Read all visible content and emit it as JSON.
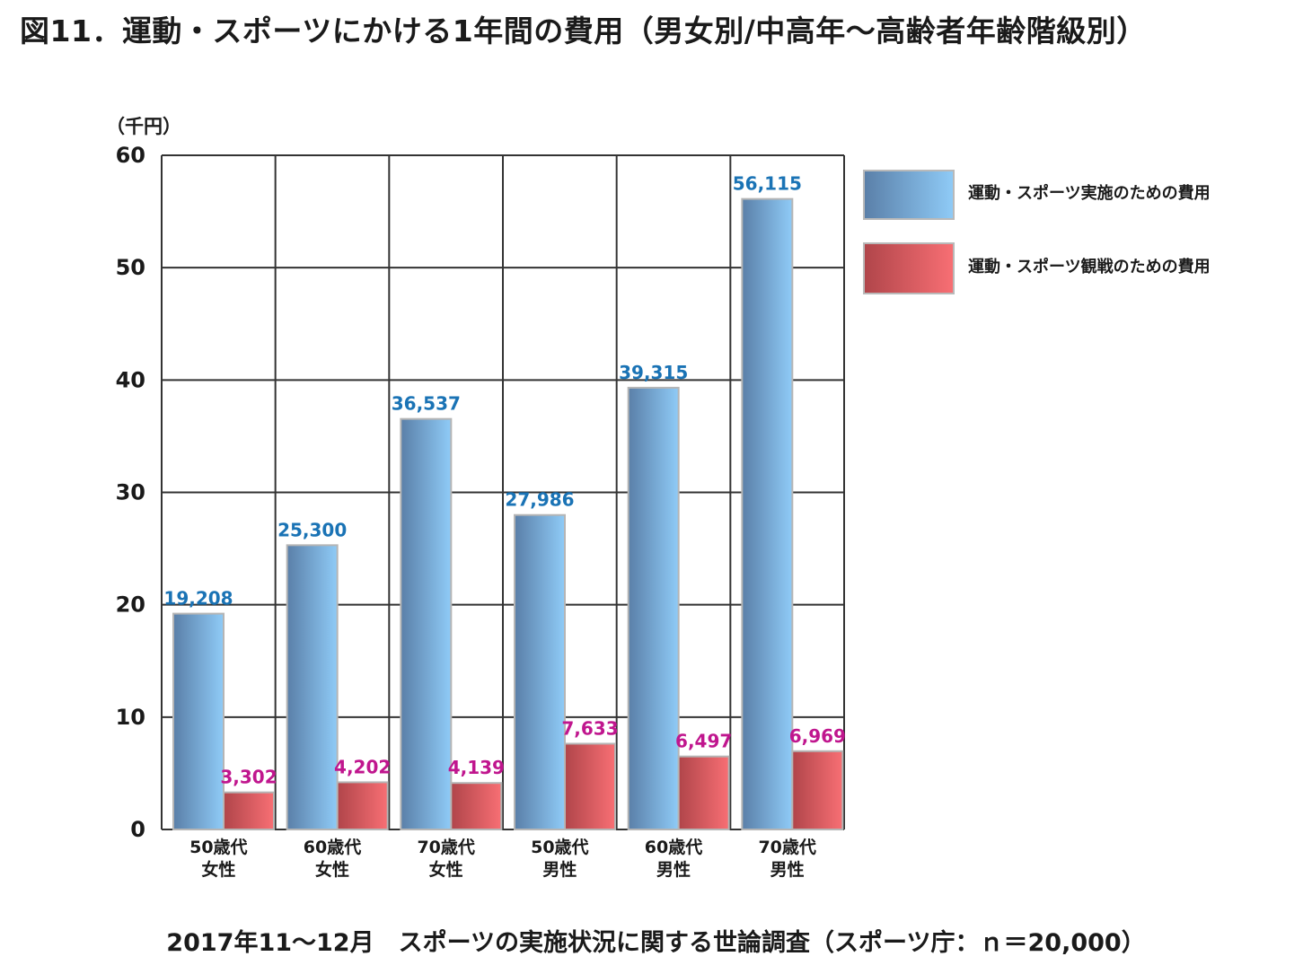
{
  "title": "図11．運動・スポーツにかける1年間の費用（男女別/中高年～高齢者年齢階級別）",
  "source": "2017年11～12月　スポーツの実施状況に関する世論調査（スポーツ庁：ｎ＝20,000）",
  "chart_data": {
    "type": "bar",
    "unit_label": "（千円）",
    "ylim": [
      0,
      60
    ],
    "yticks": [
      0,
      10,
      20,
      30,
      40,
      50,
      60
    ],
    "grid": true,
    "legend_position": "right",
    "categories": [
      [
        "50歳代",
        "女性"
      ],
      [
        "60歳代",
        "女性"
      ],
      [
        "70歳代",
        "女性"
      ],
      [
        "50歳代",
        "男性"
      ],
      [
        "60歳代",
        "男性"
      ],
      [
        "70歳代",
        "男性"
      ]
    ],
    "series": [
      {
        "name": "運動・スポーツ実施のための費用",
        "values": [
          19.208,
          25.3,
          36.537,
          27.986,
          39.315,
          56.115
        ],
        "labels": [
          "19,208",
          "25,300",
          "36,537",
          "27,986",
          "39,315",
          "56,115"
        ],
        "color_dark": "#5a7fa8",
        "color_light": "#8fcbf7",
        "label_color": "#1a73b5"
      },
      {
        "name": "運動・スポーツ観戦のための費用",
        "values": [
          3.302,
          4.202,
          4.139,
          7.633,
          6.497,
          6.969
        ],
        "labels": [
          "3,302",
          "4,202",
          "4,139",
          "7,633",
          "6,497",
          "6,969"
        ],
        "color_dark": "#b0454a",
        "color_light": "#f86f74",
        "label_color": "#c0168e"
      }
    ]
  }
}
